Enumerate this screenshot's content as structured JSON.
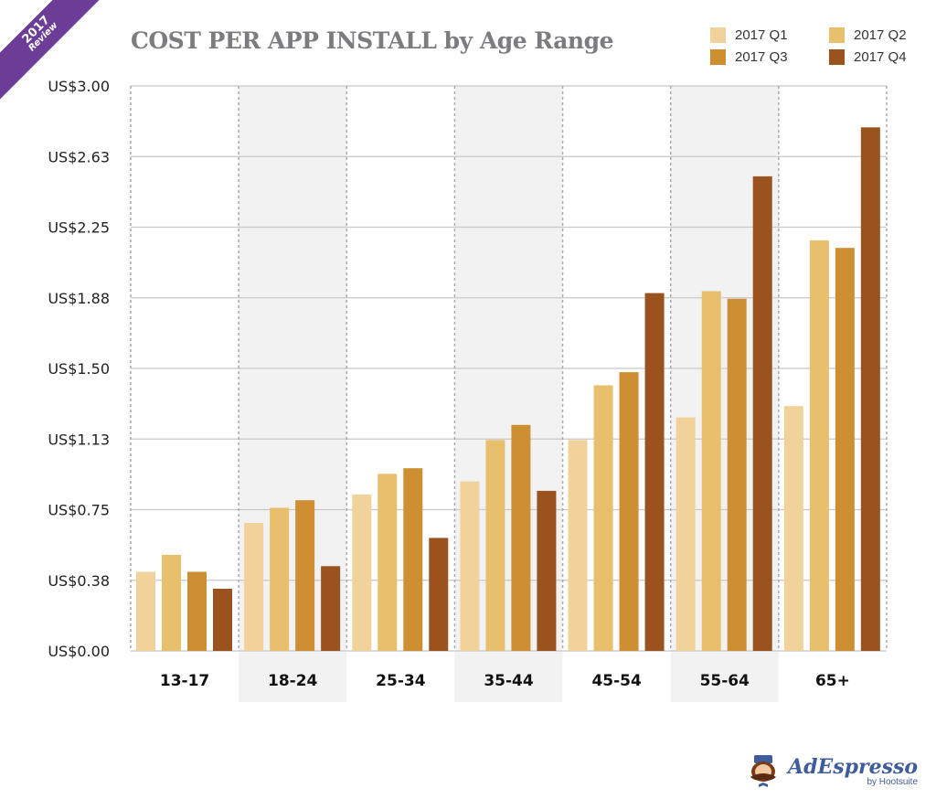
{
  "badge": {
    "year": "2017",
    "label": "Review"
  },
  "logo": {
    "brand": "AdEspresso",
    "byline": "by Hootsuite"
  },
  "chart_data": {
    "type": "bar",
    "title": "COST PER APP INSTALL by Age Range",
    "xlabel": "",
    "ylabel": "",
    "categories": [
      "13-17",
      "18-24",
      "25-34",
      "35-44",
      "45-54",
      "55-64",
      "65+"
    ],
    "series": [
      {
        "name": "2017 Q1",
        "color": "#f2d29b",
        "values": [
          0.42,
          0.68,
          0.83,
          0.9,
          1.12,
          1.24,
          1.3
        ]
      },
      {
        "name": "2017 Q2",
        "color": "#e8bf6c",
        "values": [
          0.51,
          0.76,
          0.94,
          1.12,
          1.41,
          1.91,
          2.18
        ]
      },
      {
        "name": "2017 Q3",
        "color": "#cd8f31",
        "values": [
          0.42,
          0.8,
          0.97,
          1.2,
          1.48,
          1.87,
          2.14
        ]
      },
      {
        "name": "2017 Q4",
        "color": "#9a521e",
        "values": [
          0.33,
          0.45,
          0.6,
          0.85,
          1.9,
          2.52,
          2.78
        ]
      }
    ],
    "yticks": [
      "US$0.00",
      "US$0.38",
      "US$0.75",
      "US$1.13",
      "US$1.50",
      "US$1.88",
      "US$2.25",
      "US$2.63",
      "US$3.00"
    ],
    "ylim": [
      0,
      3
    ],
    "grid": true,
    "legend_position": "top-right",
    "shaded_categories": [
      "18-24",
      "35-44",
      "55-64"
    ]
  }
}
